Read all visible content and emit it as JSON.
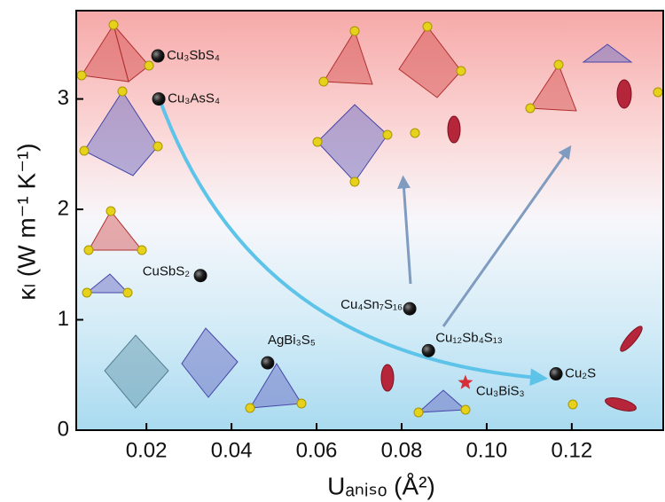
{
  "chart_data": {
    "type": "scatter",
    "xlabel": "Uₐₙᵢₛₒ (Å²)",
    "ylabel": "κₗ (W m⁻¹ K⁻¹)",
    "xlim": [
      0.0035,
      0.1415
    ],
    "ylim": [
      0,
      3.8
    ],
    "xticks": [
      0.02,
      0.04,
      0.06,
      0.08,
      {
        "value": 0.1,
        "label": "0.10"
      },
      0.12
    ],
    "yticks": [
      0,
      1,
      2,
      3
    ],
    "series": [
      {
        "marker": "circle",
        "color": "#151515",
        "point_labels": [
          "Cu₃SbS₄",
          "Cu₃AsS₄",
          "CuSbS₂",
          "AgBi₃S₅",
          "Cu₄Sn₇S₁₆",
          "Cu₁₂Sb₄S₁₃",
          "Cu₂S"
        ],
        "x": [
          0.0227,
          0.0229,
          0.0327,
          0.0485,
          0.0819,
          0.0863,
          0.1163
        ],
        "values": [
          3.39,
          3.0,
          1.4,
          0.61,
          1.1,
          0.72,
          0.51
        ]
      },
      {
        "marker": "star",
        "color": "#d62f3a",
        "point_labels": [
          "Cu₃BiS₃"
        ],
        "x": [
          0.095
        ],
        "values": [
          0.43
        ]
      }
    ]
  }
}
